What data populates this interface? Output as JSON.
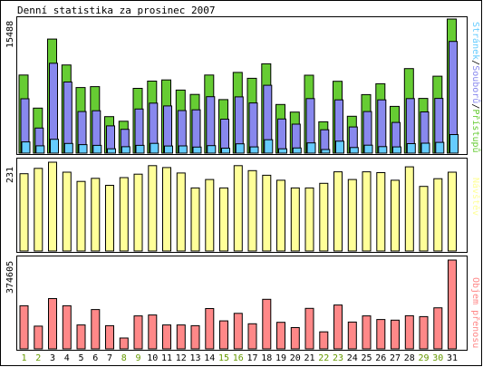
{
  "chart_data": {
    "type": "bar",
    "title": "Denní statistika za prosinec 2007",
    "categories": [
      "1",
      "2",
      "3",
      "4",
      "5",
      "6",
      "7",
      "8",
      "9",
      "10",
      "11",
      "12",
      "13",
      "14",
      "15",
      "16",
      "17",
      "18",
      "19",
      "20",
      "21",
      "22",
      "23",
      "24",
      "25",
      "26",
      "27",
      "28",
      "29",
      "30",
      "31"
    ],
    "weekend_days": [
      "1",
      "2",
      "8",
      "9",
      "15",
      "16",
      "22",
      "23",
      "29",
      "30"
    ],
    "panels": [
      {
        "id": "traffic",
        "ymax_label": "15488",
        "ylim": [
          0,
          15488
        ],
        "series": [
          {
            "name": "Přístupů",
            "color": "#66cc33",
            "values": [
              9020,
              5200,
              13180,
              10180,
              7580,
              7680,
              4220,
              3680,
              7480,
              8320,
              8460,
              7280,
              6780,
              9020,
              6180,
              9320,
              8640,
              10320,
              5620,
              4740,
              9000,
              3620,
              8300,
              4260,
              6760,
              8020,
              5400,
              9760,
              6320,
              8880,
              15488
            ]
          },
          {
            "name": "Souborů",
            "color": "#8888ee",
            "values": [
              6280,
              2900,
              10380,
              8220,
              4800,
              4900,
              3150,
              2750,
              5100,
              5780,
              5450,
              4920,
              5000,
              6520,
              3920,
              6500,
              5800,
              7840,
              3950,
              3350,
              6300,
              2700,
              6150,
              3020,
              4800,
              6150,
              3550,
              6300,
              4760,
              6320,
              12900
            ]
          },
          {
            "name": "Stránek",
            "color": "#66ccff",
            "values": [
              1300,
              850,
              1600,
              1120,
              980,
              900,
              500,
              740,
              900,
              1130,
              830,
              840,
              700,
              870,
              580,
              1080,
              720,
              1550,
              500,
              600,
              1180,
              420,
              1380,
              650,
              920,
              750,
              720,
              1100,
              1150,
              1250,
              2150
            ]
          }
        ]
      },
      {
        "id": "visits",
        "ymax_label": "231",
        "ylim": [
          0,
          231
        ],
        "series": [
          {
            "name": "Návštěv",
            "color": "#ffff99",
            "values": [
              201,
              215,
              231,
              205,
              181,
              189,
              171,
              191,
              200,
              222,
              217,
              203,
              164,
              186,
              164,
              222,
              209,
              197,
              184,
              164,
              164,
              176,
              206,
              186,
              206,
              204,
              184,
              219,
              168,
              188,
              205
            ]
          }
        ]
      },
      {
        "id": "volume",
        "ymax_label": "374605",
        "ylim": [
          0,
          374605
        ],
        "series": [
          {
            "name": "Objem přenosu",
            "color": "#ff8888",
            "values": [
              182000,
              96000,
              212000,
              182000,
              101000,
              166000,
              98000,
              46000,
              139000,
              143000,
              101000,
              101000,
              98000,
              170000,
              118000,
              150000,
              106000,
              209000,
              112000,
              90000,
              171000,
              72000,
              185000,
              113000,
              139000,
              124000,
              121000,
              140000,
              136000,
              173000,
              374605
            ]
          }
        ]
      }
    ]
  },
  "colors": {
    "weekday": "#000000",
    "weekend": "#669900",
    "border": "#000000",
    "background": "#ffffff"
  }
}
